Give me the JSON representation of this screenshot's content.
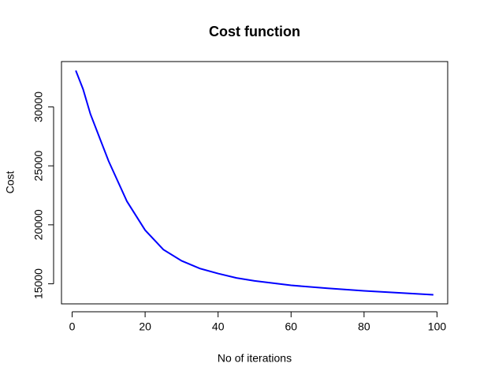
{
  "chart_data": {
    "type": "line",
    "title": "Cost function",
    "x_label": "No of iterations",
    "y_label": "Cost",
    "x": [
      1,
      3,
      5,
      10,
      15,
      20,
      25,
      30,
      35,
      40,
      45,
      50,
      60,
      70,
      80,
      90,
      99
    ],
    "series": [
      {
        "name": "Cost",
        "color": "#0000ff",
        "values": [
          33080,
          31500,
          29400,
          25400,
          22000,
          19550,
          17900,
          16950,
          16300,
          15870,
          15500,
          15250,
          14870,
          14620,
          14400,
          14230,
          14070
        ]
      }
    ],
    "xlim": [
      -2.92,
      102.92
    ],
    "ylim": [
      13300,
      33840
    ],
    "xticks": [
      0,
      20,
      40,
      60,
      80,
      100
    ],
    "yticks": [
      15000,
      20000,
      25000,
      30000
    ]
  }
}
